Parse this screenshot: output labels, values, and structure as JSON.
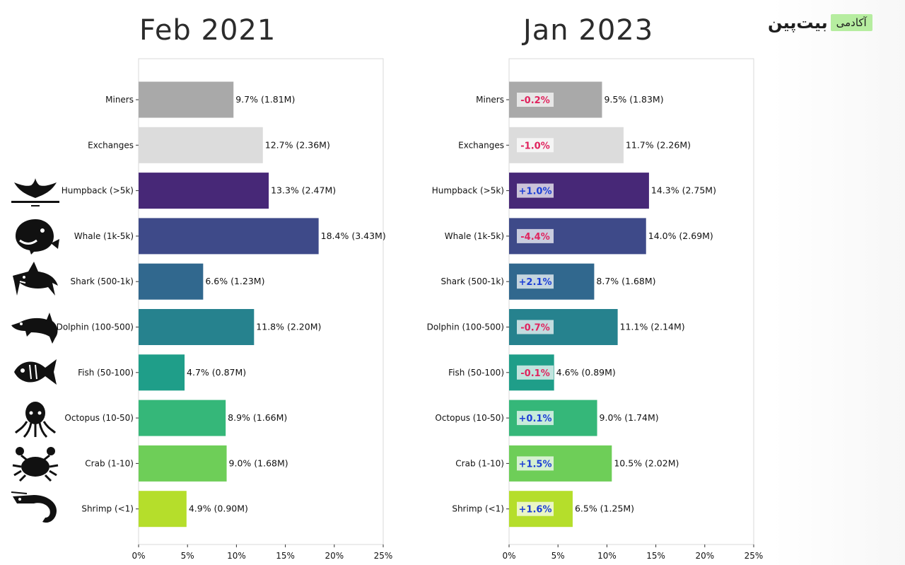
{
  "brand": {
    "wordmark": "بیت‌پین",
    "tag": "آکادمی"
  },
  "colors": {
    "Miners": "#a9a9a9",
    "Exchanges": "#dcdcdc",
    "Humpback (>5k)": "#472877",
    "Whale (1k-5k)": "#3e4a89",
    "Shark (500-1k)": "#31688e",
    "Dolphin (100-500)": "#26828e",
    "Fish (50-100)": "#1f9e89",
    "Octopus (10-50)": "#35b779",
    "Crab (1-10)": "#6ece58",
    "Shrimp (<1)": "#b5de2b",
    "positive": "#1d3fd6",
    "negative": "#e0245e"
  },
  "icons": [
    "humpback-whale-tail-icon",
    "whale-icon",
    "shark-icon",
    "dolphin-icon",
    "fish-icon",
    "octopus-icon",
    "crab-icon",
    "shrimp-icon"
  ],
  "chart_data": [
    {
      "type": "bar",
      "orientation": "horizontal",
      "title": "Feb 2021",
      "categories": [
        "Miners",
        "Exchanges",
        "Humpback (>5k)",
        "Whale (1k-5k)",
        "Shark (500-1k)",
        "Dolphin (100-500)",
        "Fish (50-100)",
        "Octopus (10-50)",
        "Crab (1-10)",
        "Shrimp (<1)"
      ],
      "values": [
        9.7,
        12.7,
        13.3,
        18.4,
        6.6,
        11.8,
        4.7,
        8.9,
        9.0,
        4.9
      ],
      "data_labels": [
        "9.7% (1.81M)",
        "12.7% (2.36M)",
        "13.3% (2.47M)",
        "18.4% (3.43M)",
        "6.6% (1.23M)",
        "11.8% (2.20M)",
        "4.7% (0.87M)",
        "8.9% (1.66M)",
        "9.0% (1.68M)",
        "4.9% (0.90M)"
      ],
      "xlim": [
        0,
        25
      ],
      "xticks": [
        "0%",
        "5%",
        "10%",
        "15%",
        "20%",
        "25%"
      ]
    },
    {
      "type": "bar",
      "orientation": "horizontal",
      "title": "Jan 2023",
      "categories": [
        "Miners",
        "Exchanges",
        "Humpback (>5k)",
        "Whale (1k-5k)",
        "Shark (500-1k)",
        "Dolphin (100-500)",
        "Fish (50-100)",
        "Octopus (10-50)",
        "Crab (1-10)",
        "Shrimp (<1)"
      ],
      "values": [
        9.5,
        11.7,
        14.3,
        14.0,
        8.7,
        11.1,
        4.6,
        9.0,
        10.5,
        6.5
      ],
      "data_labels": [
        "9.5% (1.83M)",
        "11.7% (2.26M)",
        "14.3% (2.75M)",
        "14.0% (2.69M)",
        "8.7% (1.68M)",
        "11.1% (2.14M)",
        "4.6% (0.89M)",
        "9.0% (1.74M)",
        "10.5% (2.02M)",
        "6.5% (1.25M)"
      ],
      "changes": [
        "-0.2%",
        "-1.0%",
        "+1.0%",
        "-4.4%",
        "+2.1%",
        "-0.7%",
        "-0.1%",
        "+0.1%",
        "+1.5%",
        "+1.6%"
      ],
      "xlim": [
        0,
        25
      ],
      "xticks": [
        "0%",
        "5%",
        "10%",
        "15%",
        "20%",
        "25%"
      ]
    }
  ]
}
